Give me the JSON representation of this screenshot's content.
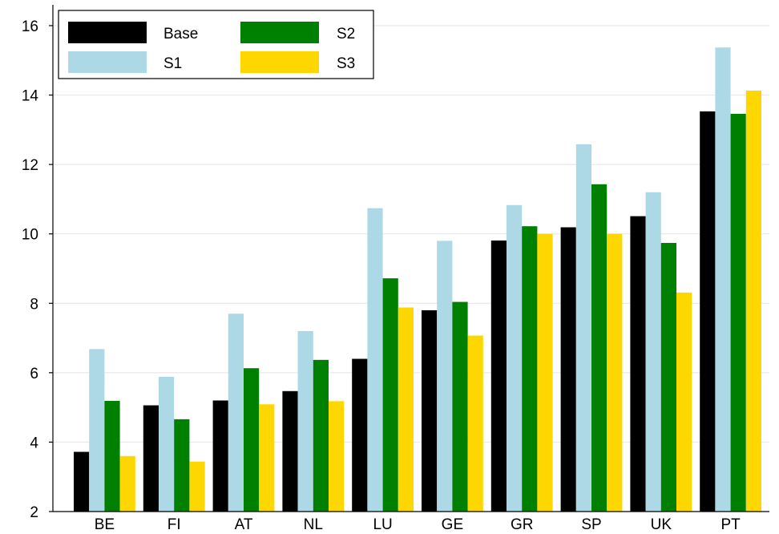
{
  "chart_data": {
    "type": "bar",
    "title": "",
    "xlabel": "",
    "ylabel": "",
    "ylim": [
      2,
      16.6
    ],
    "yticks": [
      2,
      4,
      6,
      8,
      10,
      12,
      14,
      16
    ],
    "grid": "horizontal",
    "legend_position": "top-left",
    "categories": [
      "BE",
      "FI",
      "AT",
      "NL",
      "LU",
      "GE",
      "GR",
      "SP",
      "UK",
      "PT"
    ],
    "series": [
      {
        "name": "Base",
        "color": "#000000",
        "values": [
          3.72,
          5.06,
          5.2,
          5.47,
          6.4,
          7.8,
          9.81,
          10.19,
          10.51,
          13.53
        ]
      },
      {
        "name": "S1",
        "color": "#add8e6",
        "values": [
          6.68,
          5.88,
          7.7,
          7.2,
          10.74,
          9.8,
          10.83,
          12.58,
          11.2,
          15.37
        ]
      },
      {
        "name": "S2",
        "color": "#008000",
        "values": [
          5.19,
          4.66,
          6.13,
          6.37,
          8.72,
          8.04,
          10.22,
          11.43,
          9.74,
          13.46
        ]
      },
      {
        "name": "S3",
        "color": "#ffd700",
        "values": [
          3.6,
          3.44,
          5.09,
          5.18,
          7.88,
          7.07,
          10.0,
          10.0,
          8.31,
          14.13
        ]
      }
    ]
  }
}
